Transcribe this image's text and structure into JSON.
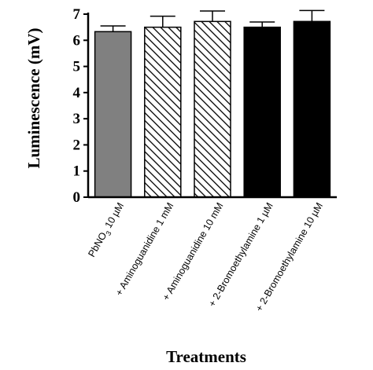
{
  "chart_data": {
    "type": "bar",
    "title": "",
    "xlabel": "Treatments",
    "ylabel": "Luminescence (mV)",
    "ylim": [
      0,
      7
    ],
    "yticks": [
      0,
      1,
      2,
      3,
      4,
      5,
      6,
      7
    ],
    "grid": false,
    "categories": [
      "PbNO3 10 µM",
      "+ Aminoguanidine 1 mM",
      "+ Aminoguanidine 10 mM",
      "+ 2-Bromoethylamine 1 µM",
      "+ 2-Bromoethylamine 10 µM"
    ],
    "values": [
      6.33,
      6.5,
      6.72,
      6.5,
      6.72
    ],
    "errors": [
      0.22,
      0.42,
      0.4,
      0.2,
      0.42
    ],
    "bar_styles": [
      "gray",
      "hatched",
      "hatched",
      "black",
      "black"
    ],
    "colors": {
      "gray": "#808080",
      "black": "#000000",
      "hatch": "#000000"
    }
  }
}
